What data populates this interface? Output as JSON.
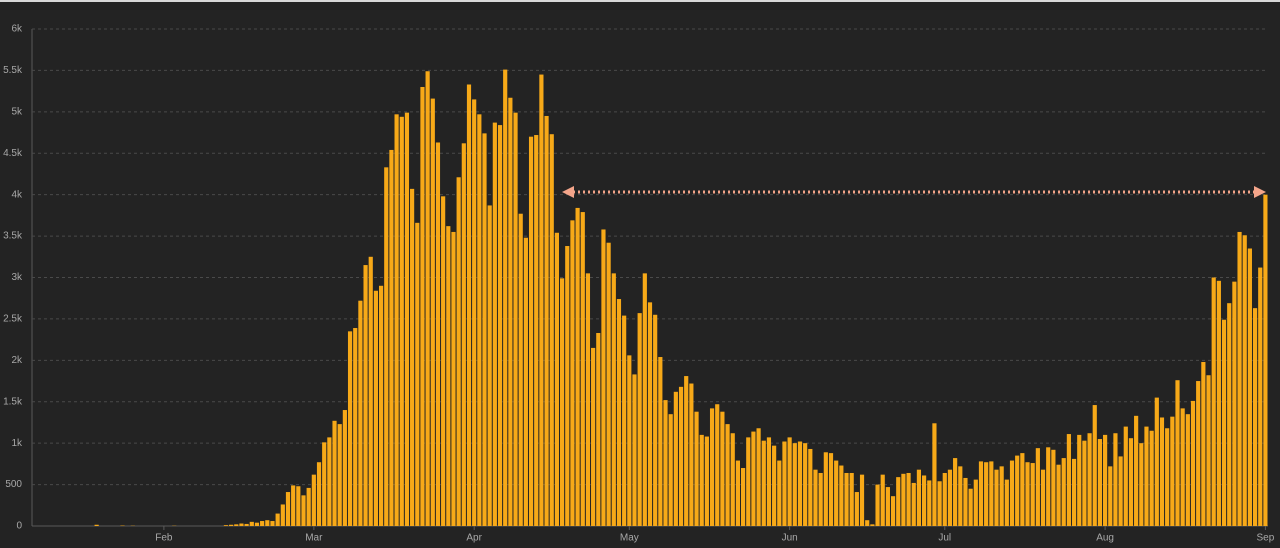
{
  "chart_data": {
    "type": "bar",
    "color": "#f7a918",
    "grid": true,
    "ylim": [
      0,
      6000
    ],
    "yticks": [
      0,
      500,
      {
        "value": 1000,
        "label": "1k"
      },
      {
        "value": 1500,
        "label": "1.5k"
      },
      {
        "value": 2000,
        "label": "2k"
      },
      {
        "value": 2500,
        "label": "2.5k"
      },
      {
        "value": 3000,
        "label": "3k"
      },
      {
        "value": 3500,
        "label": "3.5k"
      },
      {
        "value": 4000,
        "label": "4k"
      },
      {
        "value": 4500,
        "label": "4.5k"
      },
      {
        "value": 5000,
        "label": "5k"
      },
      {
        "value": 5500,
        "label": "5.5k"
      },
      {
        "value": 6000,
        "label": "6k"
      }
    ],
    "categories": [
      null,
      null,
      null,
      null,
      null,
      null,
      null,
      null,
      null,
      null,
      null,
      null,
      null,
      null,
      null,
      null,
      null,
      null,
      null,
      null,
      null,
      null,
      null,
      null,
      null,
      "Feb",
      null,
      null,
      null,
      null,
      null,
      null,
      null,
      null,
      null,
      null,
      null,
      null,
      null,
      null,
      null,
      null,
      null,
      null,
      null,
      null,
      null,
      null,
      null,
      null,
      null,
      null,
      null,
      null,
      "Mar",
      null,
      null,
      null,
      null,
      null,
      null,
      null,
      null,
      null,
      null,
      null,
      null,
      null,
      null,
      null,
      null,
      null,
      null,
      null,
      null,
      null,
      null,
      null,
      null,
      null,
      null,
      null,
      null,
      null,
      null,
      "Apr",
      null,
      null,
      null,
      null,
      null,
      null,
      null,
      null,
      null,
      null,
      null,
      null,
      null,
      null,
      null,
      null,
      null,
      null,
      null,
      null,
      null,
      null,
      null,
      null,
      null,
      null,
      null,
      null,
      null,
      "May",
      null,
      null,
      null,
      null,
      null,
      null,
      null,
      null,
      null,
      null,
      null,
      null,
      null,
      null,
      null,
      null,
      null,
      null,
      null,
      null,
      null,
      null,
      null,
      null,
      null,
      null,
      null,
      null,
      null,
      null,
      "Jun",
      null,
      null,
      null,
      null,
      null,
      null,
      null,
      null,
      null,
      null,
      null,
      null,
      null,
      null,
      null,
      null,
      null,
      null,
      null,
      null,
      null,
      null,
      null,
      null,
      null,
      null,
      null,
      null,
      null,
      "Jul",
      null,
      null,
      null,
      null,
      null,
      null,
      null,
      null,
      null,
      null,
      null,
      null,
      null,
      null,
      null,
      null,
      null,
      null,
      null,
      null,
      null,
      null,
      null,
      null,
      null,
      null,
      null,
      null,
      null,
      null,
      "Aug",
      null,
      null,
      null,
      null,
      null,
      null,
      null,
      null,
      null,
      null,
      null,
      null,
      null,
      null,
      null,
      null,
      null,
      null,
      null,
      null,
      null,
      null,
      null,
      null,
      null,
      null,
      null,
      null,
      null,
      null,
      "Sep"
    ],
    "values": [
      0,
      0,
      0,
      0,
      0,
      0,
      0,
      0,
      0,
      0,
      0,
      0,
      15,
      0,
      0,
      0,
      0,
      5,
      0,
      3,
      0,
      0,
      0,
      0,
      0,
      0,
      0,
      3,
      0,
      0,
      0,
      0,
      0,
      0,
      0,
      0,
      0,
      10,
      15,
      20,
      30,
      25,
      50,
      40,
      60,
      70,
      60,
      150,
      260,
      410,
      490,
      480,
      370,
      460,
      620,
      770,
      1010,
      1070,
      1270,
      1230,
      1400,
      2350,
      2390,
      2720,
      3150,
      3250,
      2840,
      2900,
      4330,
      4540,
      4970,
      4940,
      4990,
      4070,
      3660,
      5300,
      5490,
      5160,
      4630,
      3980,
      3620,
      3550,
      4210,
      4620,
      5330,
      5150,
      4970,
      4740,
      3870,
      4870,
      4840,
      5510,
      5170,
      4990,
      3770,
      3480,
      4700,
      4720,
      5450,
      4950,
      4730,
      3540,
      2990,
      3380,
      3690,
      3840,
      3790,
      3050,
      2150,
      2330,
      3580,
      3420,
      3050,
      2740,
      2540,
      2060,
      1830,
      2570,
      3050,
      2700,
      2550,
      2040,
      1520,
      1350,
      1620,
      1680,
      1810,
      1720,
      1380,
      1100,
      1080,
      1420,
      1470,
      1380,
      1230,
      1120,
      790,
      700,
      1070,
      1140,
      1180,
      1030,
      1070,
      970,
      790,
      1020,
      1070,
      1000,
      1020,
      1000,
      930,
      680,
      640,
      890,
      880,
      790,
      730,
      640,
      640,
      410,
      620,
      70,
      20,
      500,
      620,
      470,
      360,
      590,
      630,
      640,
      520,
      680,
      610,
      550,
      1240,
      540,
      640,
      680,
      820,
      720,
      580,
      450,
      560,
      780,
      770,
      780,
      680,
      720,
      560,
      790,
      850,
      880,
      770,
      760,
      940,
      680,
      950,
      920,
      740,
      820,
      1110,
      810,
      1100,
      1030,
      1120,
      1460,
      1050,
      1100,
      720,
      1120,
      840,
      1200,
      1060,
      1330,
      1000,
      1200,
      1150,
      1550,
      1310,
      1180,
      1320,
      1760,
      1420,
      1350,
      1510,
      1750,
      1980,
      1820,
      3000,
      2960,
      2490,
      2690,
      2950,
      3550,
      3510,
      3350,
      2630,
      3120,
      4000
    ]
  }
}
